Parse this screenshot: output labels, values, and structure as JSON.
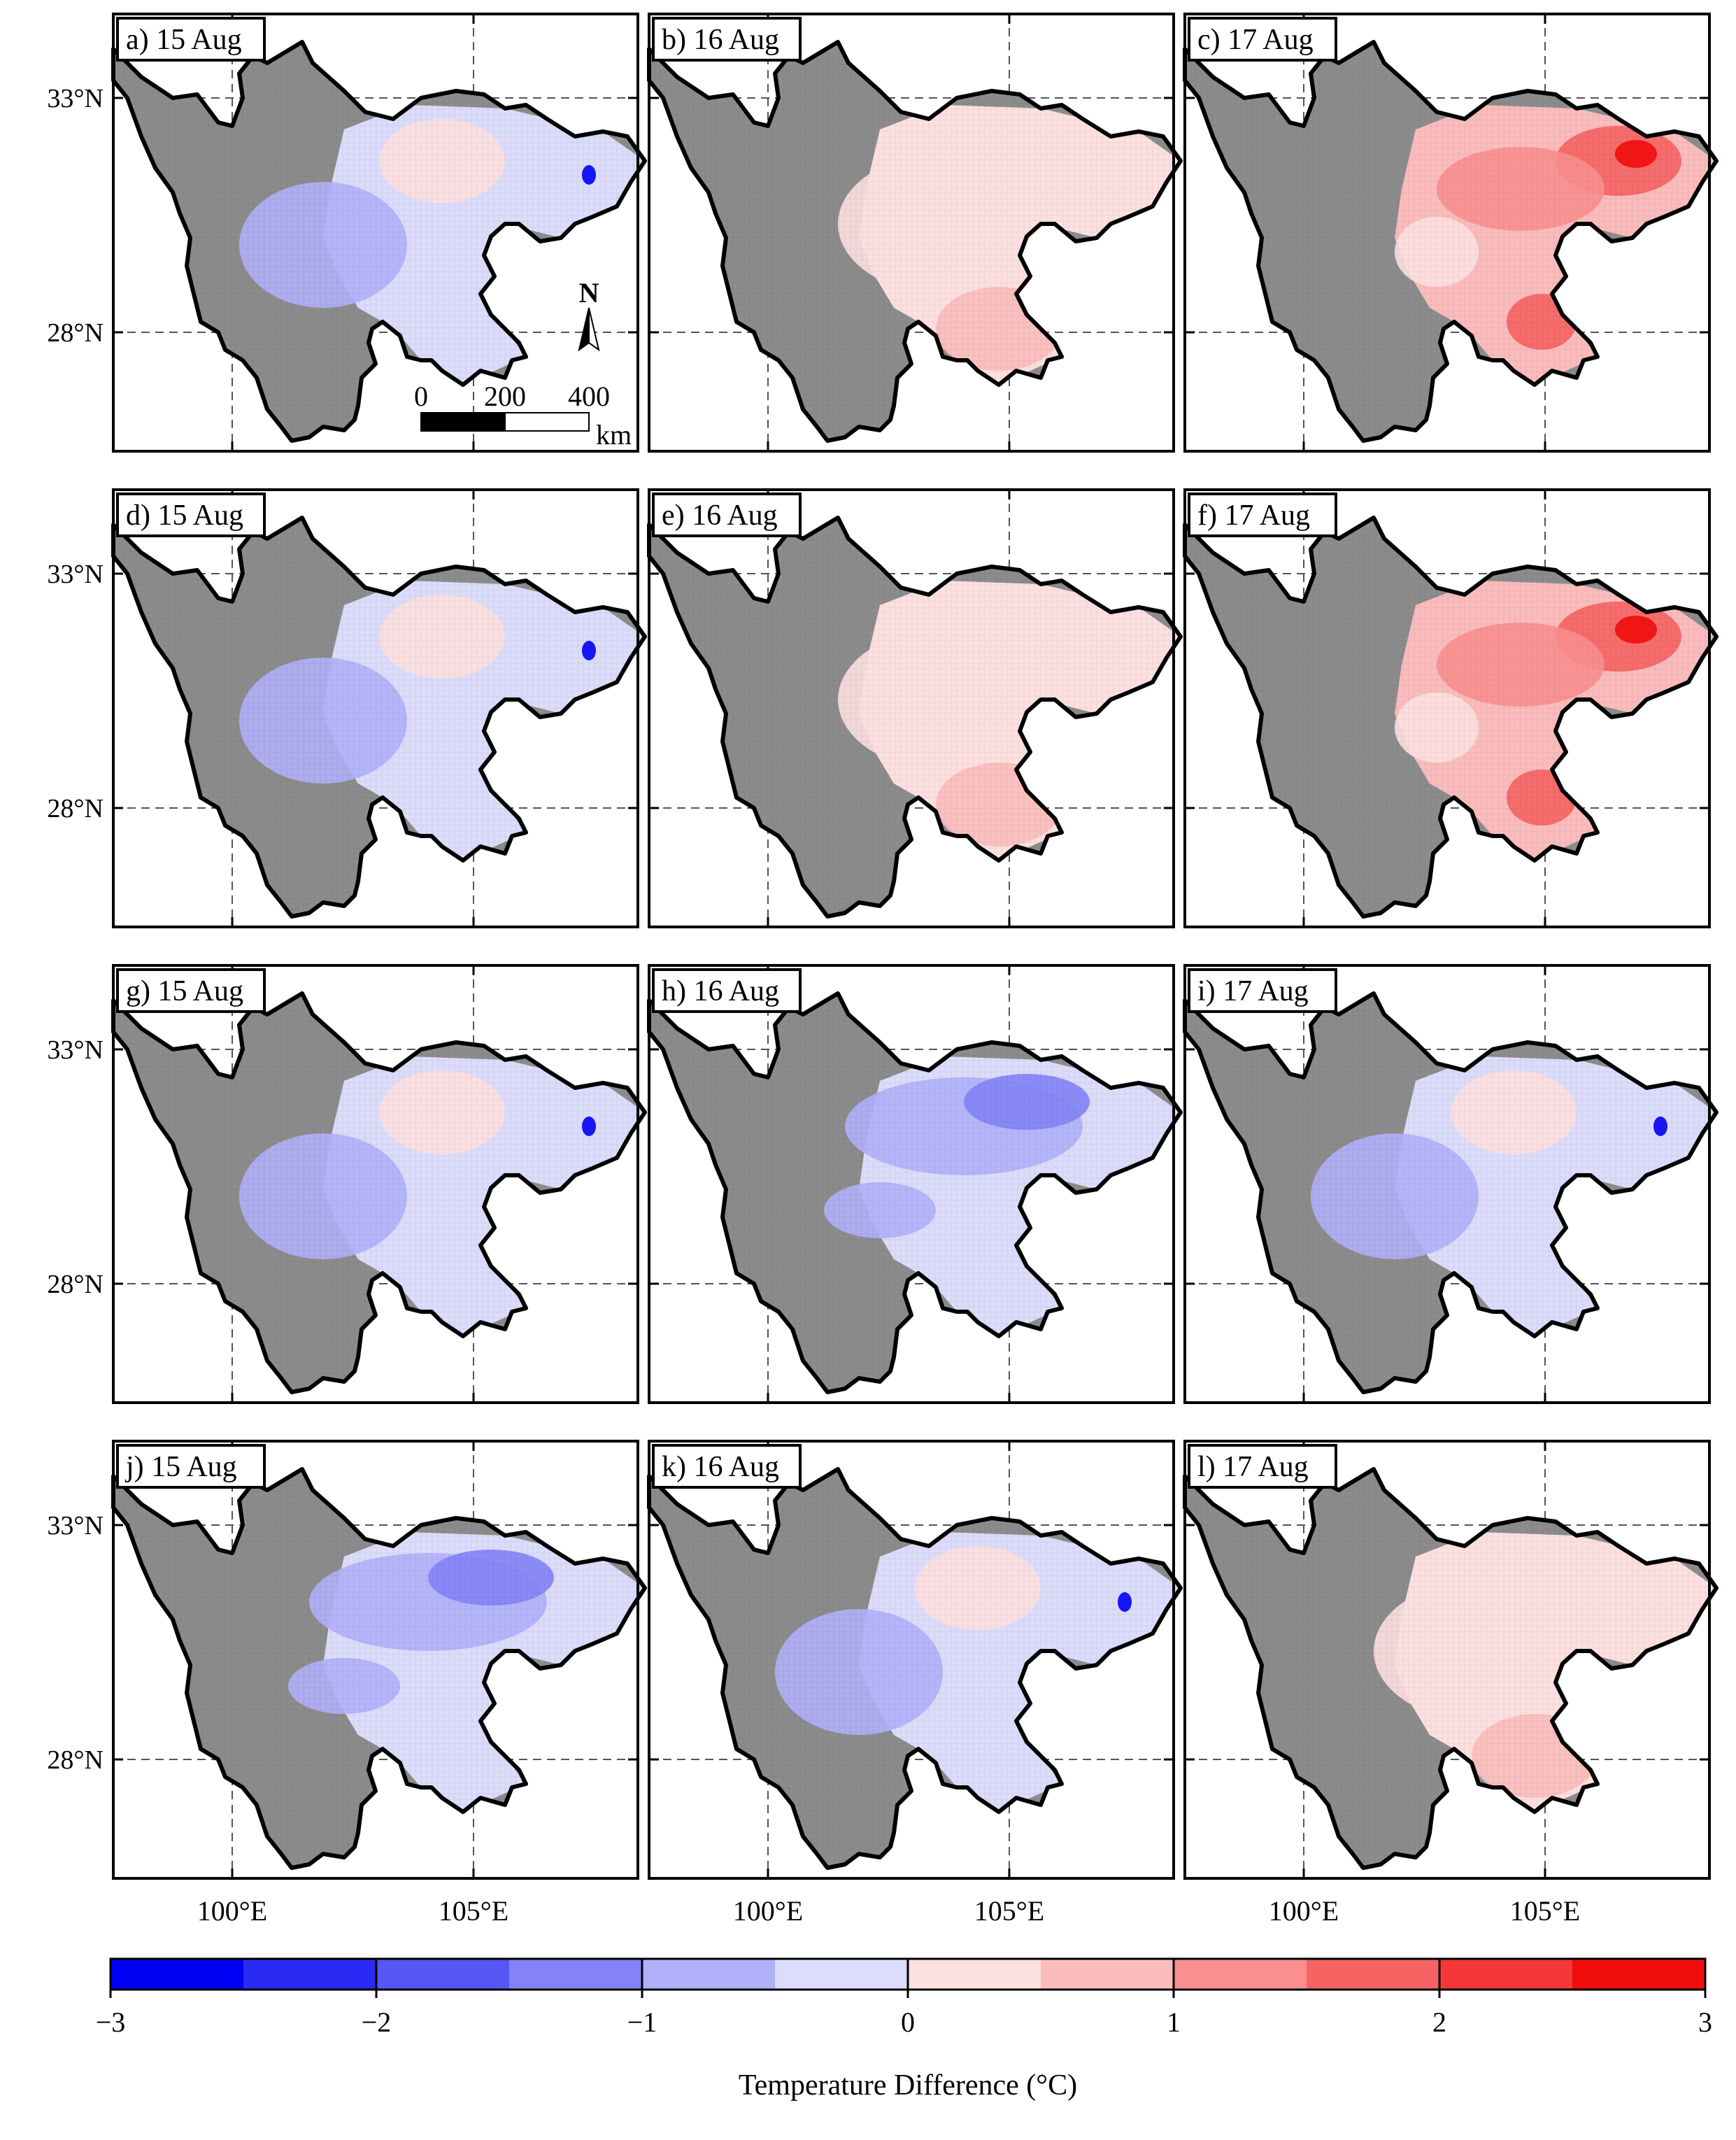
{
  "figure": {
    "panels": [
      {
        "id": "a",
        "label": "a) 15 Aug",
        "pattern": "cool-weak"
      },
      {
        "id": "b",
        "label": "b) 16 Aug",
        "pattern": "warm-weak"
      },
      {
        "id": "c",
        "label": "c) 17 Aug",
        "pattern": "warm-strong"
      },
      {
        "id": "d",
        "label": "d) 15 Aug",
        "pattern": "cool-weak"
      },
      {
        "id": "e",
        "label": "e) 16 Aug",
        "pattern": "warm-weak"
      },
      {
        "id": "f",
        "label": "f) 17 Aug",
        "pattern": "warm-strong"
      },
      {
        "id": "g",
        "label": "g) 15 Aug",
        "pattern": "cool-weak"
      },
      {
        "id": "h",
        "label": "h) 16 Aug",
        "pattern": "cool-mid"
      },
      {
        "id": "i",
        "label": "i) 17 Aug",
        "pattern": "cool-weak"
      },
      {
        "id": "j",
        "label": "j) 15 Aug",
        "pattern": "cool-mid"
      },
      {
        "id": "k",
        "label": "k) 16 Aug",
        "pattern": "cool-weak"
      },
      {
        "id": "l",
        "label": "l) 17 Aug",
        "pattern": "warm-weak"
      }
    ],
    "lat_labels": [
      "33°N",
      "28°N"
    ],
    "lon_labels": [
      "100°E",
      "105°E"
    ],
    "scale_bar": {
      "ticks": [
        "0",
        "200",
        "400"
      ],
      "unit": "km"
    },
    "north_arrow": "N",
    "colorbar": {
      "title": "Temperature Difference (°C)",
      "tick_labels": [
        "−3",
        "−2",
        "−1",
        "0",
        "1",
        "2",
        "3"
      ],
      "range": [
        -3,
        3
      ],
      "colors": [
        "#0000f5",
        "#2a2af5",
        "#5656f5",
        "#8383f7",
        "#b0b0f9",
        "#dcdcfb",
        "#fde0e0",
        "#fbbcbc",
        "#f98f8f",
        "#f66363",
        "#f43838",
        "#f20d0d"
      ]
    },
    "land_color": "#8c8c8c",
    "boundary_color": "#000000"
  }
}
